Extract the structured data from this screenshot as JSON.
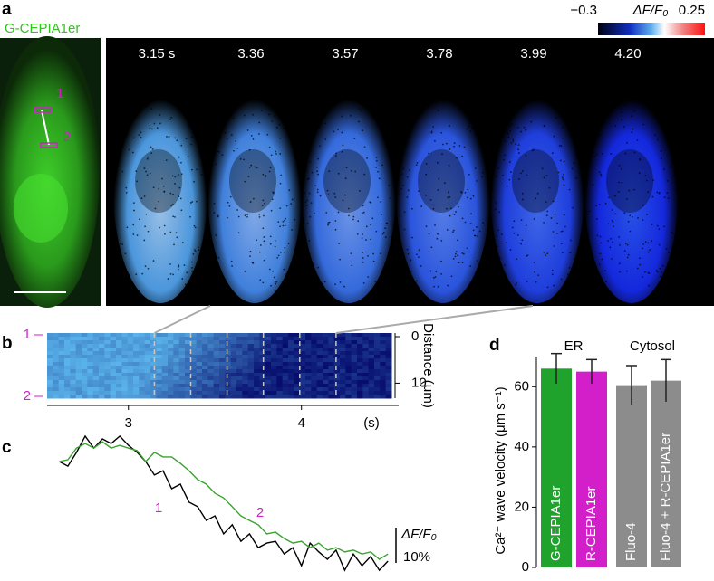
{
  "panel_labels": [
    "a",
    "b",
    "c",
    "d"
  ],
  "panel_a": {
    "image_label": "G-CEPIA1er",
    "roi_labels": [
      "1",
      "2"
    ],
    "frames": [
      {
        "value": 3.15,
        "label": "3.15 s"
      },
      3.36,
      3.57,
      3.78,
      3.99,
      {
        "value": 4.2,
        "label": "4.20"
      }
    ],
    "colorbar": {
      "min": {
        "value": -0.3,
        "label": "−0.3"
      },
      "max": 0.25,
      "label": "ΔF/F₀"
    }
  },
  "chart_data": [
    {
      "type": "heatmap",
      "xlim": [
        2.53,
        4.52
      ],
      "xticks": [
        3,
        4
      ],
      "x_unit": "(s)",
      "ylim": [
        0,
        14
      ],
      "yticks": [
        0,
        10
      ],
      "ylabel": "Distance (μm)",
      "row_labels": [
        "1",
        "2"
      ]
    },
    {
      "type": "line",
      "x": [
        2.6,
        2.65,
        2.7,
        2.75,
        2.8,
        2.85,
        2.9,
        2.95,
        3.0,
        3.05,
        3.1,
        3.15,
        3.2,
        3.25,
        3.3,
        3.35,
        3.4,
        3.45,
        3.5,
        3.55,
        3.6,
        3.65,
        3.7,
        3.75,
        3.8,
        3.85,
        3.9,
        3.95,
        4.0,
        4.05,
        4.1,
        4.15,
        4.2,
        4.25,
        4.3,
        4.35,
        4.4,
        4.45,
        4.5
      ],
      "series": [
        {
          "name": "1",
          "color": "#000000",
          "values": [
            0,
            -1.3,
            2.6,
            7.2,
            3.8,
            6.4,
            5.1,
            7.2,
            4.6,
            2.6,
            0,
            -3.8,
            -2.6,
            -7.7,
            -6.4,
            -11.5,
            -12.8,
            -16.7,
            -15.4,
            -20.5,
            -17.9,
            -22.6,
            -20.5,
            -24.4,
            -23.1,
            -22.6,
            -26.2,
            -24.4,
            -29.5,
            -23.1,
            -25.6,
            -27.7,
            -25.1,
            -30.8,
            -26.2,
            -29.5,
            -26.9,
            -30.8,
            -28.2
          ]
        },
        {
          "name": "2",
          "color": "#3aa32f",
          "values": [
            0,
            0.5,
            3.8,
            5.1,
            3.8,
            5.6,
            3.8,
            4.6,
            3.8,
            3.1,
            0,
            2.6,
            1.3,
            1.3,
            -0.5,
            -2.6,
            -5.1,
            -6.4,
            -9.0,
            -10.3,
            -12.8,
            -15.4,
            -16.7,
            -17.9,
            -20.5,
            -20.0,
            -21.8,
            -23.1,
            -22.6,
            -24.4,
            -23.1,
            -25.1,
            -24.4,
            -25.6,
            -25.1,
            -26.2,
            -25.6,
            -27.7,
            -26.2
          ]
        }
      ],
      "label_color": "#d21fc9",
      "scale_bar": {
        "value": 10,
        "label": "10%"
      },
      "scale_bar_label": "ΔF/F₀"
    },
    {
      "type": "bar",
      "categories": [
        "G-CEPIA1er",
        "R-CEPIA1er",
        "Fluo-4",
        "Fluo-4 + R-CEPIA1er"
      ],
      "values": [
        66,
        65,
        60.5,
        62
      ],
      "errors": [
        5,
        4,
        6.5,
        7
      ],
      "colors": [
        "#1fa32c",
        "#d21fc9",
        "#8c8c8c",
        "#8c8c8c"
      ],
      "ylim": [
        0,
        70
      ],
      "yticks": [
        0,
        20,
        40,
        60
      ],
      "ylabel": "Ca²⁺ wave velocity (μm s⁻¹)",
      "groups": [
        "ER",
        "Cytosol"
      ]
    }
  ]
}
